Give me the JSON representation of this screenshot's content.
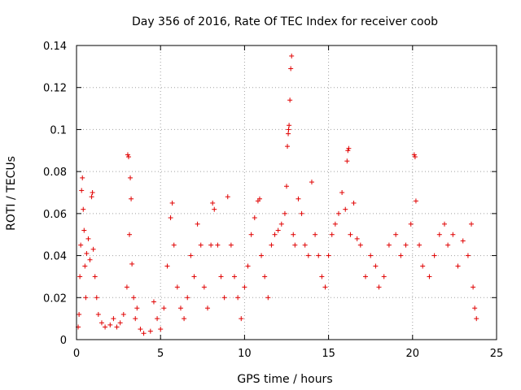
{
  "chart_data": {
    "type": "scatter",
    "title": "Day 356 of 2016, Rate Of TEC Index for receiver coob",
    "xlabel": "GPS time / hours",
    "ylabel": "ROTI / TECUs",
    "xlim": [
      0,
      25
    ],
    "ylim": [
      0,
      0.14
    ],
    "x_ticks": [
      "0",
      "5",
      "10",
      "15",
      "20",
      "25"
    ],
    "y_ticks": [
      "0",
      "0.02",
      "0.04",
      "0.06",
      "0.08",
      "0.1",
      "0.12",
      "0.14"
    ],
    "x_tick_values": [
      0,
      5,
      10,
      15,
      20,
      25
    ],
    "y_tick_values": [
      0,
      0.02,
      0.04,
      0.06,
      0.08,
      0.1,
      0.12,
      0.14
    ],
    "grid": true,
    "marker": "+",
    "color": "#e00000",
    "series": [
      {
        "name": "ROTI",
        "points": [
          [
            0.1,
            0.006
          ],
          [
            0.15,
            0.012
          ],
          [
            0.2,
            0.03
          ],
          [
            0.25,
            0.045
          ],
          [
            0.3,
            0.071
          ],
          [
            0.35,
            0.077
          ],
          [
            0.4,
            0.062
          ],
          [
            0.45,
            0.052
          ],
          [
            0.5,
            0.035
          ],
          [
            0.55,
            0.02
          ],
          [
            0.6,
            0.041
          ],
          [
            0.7,
            0.048
          ],
          [
            0.8,
            0.038
          ],
          [
            0.9,
            0.068
          ],
          [
            0.95,
            0.07
          ],
          [
            1.0,
            0.043
          ],
          [
            1.1,
            0.03
          ],
          [
            1.2,
            0.02
          ],
          [
            1.3,
            0.012
          ],
          [
            1.5,
            0.008
          ],
          [
            1.7,
            0.006
          ],
          [
            2.0,
            0.007
          ],
          [
            2.2,
            0.01
          ],
          [
            2.4,
            0.006
          ],
          [
            2.6,
            0.008
          ],
          [
            2.8,
            0.012
          ],
          [
            3.0,
            0.025
          ],
          [
            3.05,
            0.088
          ],
          [
            3.1,
            0.087
          ],
          [
            3.15,
            0.05
          ],
          [
            3.2,
            0.077
          ],
          [
            3.25,
            0.067
          ],
          [
            3.3,
            0.036
          ],
          [
            3.4,
            0.02
          ],
          [
            3.5,
            0.01
          ],
          [
            3.6,
            0.015
          ],
          [
            3.8,
            0.005
          ],
          [
            4.0,
            0.003
          ],
          [
            4.4,
            0.004
          ],
          [
            4.6,
            0.018
          ],
          [
            4.8,
            0.01
          ],
          [
            5.0,
            0.005
          ],
          [
            5.2,
            0.015
          ],
          [
            5.4,
            0.035
          ],
          [
            5.6,
            0.058
          ],
          [
            5.7,
            0.065
          ],
          [
            5.8,
            0.045
          ],
          [
            6.0,
            0.025
          ],
          [
            6.2,
            0.015
          ],
          [
            6.4,
            0.01
          ],
          [
            6.6,
            0.02
          ],
          [
            6.8,
            0.04
          ],
          [
            7.0,
            0.03
          ],
          [
            7.2,
            0.055
          ],
          [
            7.4,
            0.045
          ],
          [
            7.6,
            0.025
          ],
          [
            7.8,
            0.015
          ],
          [
            8.0,
            0.045
          ],
          [
            8.1,
            0.065
          ],
          [
            8.2,
            0.062
          ],
          [
            8.4,
            0.045
          ],
          [
            8.6,
            0.03
          ],
          [
            8.8,
            0.02
          ],
          [
            9.0,
            0.068
          ],
          [
            9.2,
            0.045
          ],
          [
            9.4,
            0.03
          ],
          [
            9.6,
            0.02
          ],
          [
            9.8,
            0.01
          ],
          [
            10.0,
            0.025
          ],
          [
            10.2,
            0.035
          ],
          [
            10.4,
            0.05
          ],
          [
            10.6,
            0.058
          ],
          [
            10.8,
            0.066
          ],
          [
            10.9,
            0.067
          ],
          [
            11.0,
            0.04
          ],
          [
            11.2,
            0.03
          ],
          [
            11.4,
            0.02
          ],
          [
            11.6,
            0.045
          ],
          [
            11.8,
            0.05
          ],
          [
            12.0,
            0.052
          ],
          [
            12.2,
            0.055
          ],
          [
            12.4,
            0.06
          ],
          [
            12.5,
            0.073
          ],
          [
            12.55,
            0.092
          ],
          [
            12.6,
            0.098
          ],
          [
            12.62,
            0.1
          ],
          [
            12.65,
            0.102
          ],
          [
            12.7,
            0.114
          ],
          [
            12.75,
            0.129
          ],
          [
            12.8,
            0.135
          ],
          [
            12.9,
            0.05
          ],
          [
            13.0,
            0.045
          ],
          [
            13.2,
            0.067
          ],
          [
            13.4,
            0.06
          ],
          [
            13.6,
            0.045
          ],
          [
            13.8,
            0.04
          ],
          [
            14.0,
            0.075
          ],
          [
            14.2,
            0.05
          ],
          [
            14.4,
            0.04
          ],
          [
            14.6,
            0.03
          ],
          [
            14.8,
            0.025
          ],
          [
            15.0,
            0.04
          ],
          [
            15.2,
            0.05
          ],
          [
            15.4,
            0.055
          ],
          [
            15.6,
            0.06
          ],
          [
            15.8,
            0.07
          ],
          [
            16.0,
            0.062
          ],
          [
            16.1,
            0.085
          ],
          [
            16.15,
            0.09
          ],
          [
            16.2,
            0.091
          ],
          [
            16.3,
            0.05
          ],
          [
            16.5,
            0.065
          ],
          [
            16.7,
            0.048
          ],
          [
            16.9,
            0.045
          ],
          [
            17.2,
            0.03
          ],
          [
            17.5,
            0.04
          ],
          [
            17.8,
            0.035
          ],
          [
            18.0,
            0.025
          ],
          [
            18.3,
            0.03
          ],
          [
            18.6,
            0.045
          ],
          [
            19.0,
            0.05
          ],
          [
            19.3,
            0.04
          ],
          [
            19.6,
            0.045
          ],
          [
            19.9,
            0.055
          ],
          [
            20.1,
            0.088
          ],
          [
            20.15,
            0.087
          ],
          [
            20.2,
            0.066
          ],
          [
            20.4,
            0.045
          ],
          [
            20.6,
            0.035
          ],
          [
            21.0,
            0.03
          ],
          [
            21.3,
            0.04
          ],
          [
            21.6,
            0.05
          ],
          [
            21.9,
            0.055
          ],
          [
            22.1,
            0.045
          ],
          [
            22.4,
            0.05
          ],
          [
            22.7,
            0.035
          ],
          [
            23.0,
            0.047
          ],
          [
            23.3,
            0.04
          ],
          [
            23.5,
            0.055
          ],
          [
            23.6,
            0.025
          ],
          [
            23.7,
            0.015
          ],
          [
            23.8,
            0.01
          ]
        ]
      }
    ]
  }
}
